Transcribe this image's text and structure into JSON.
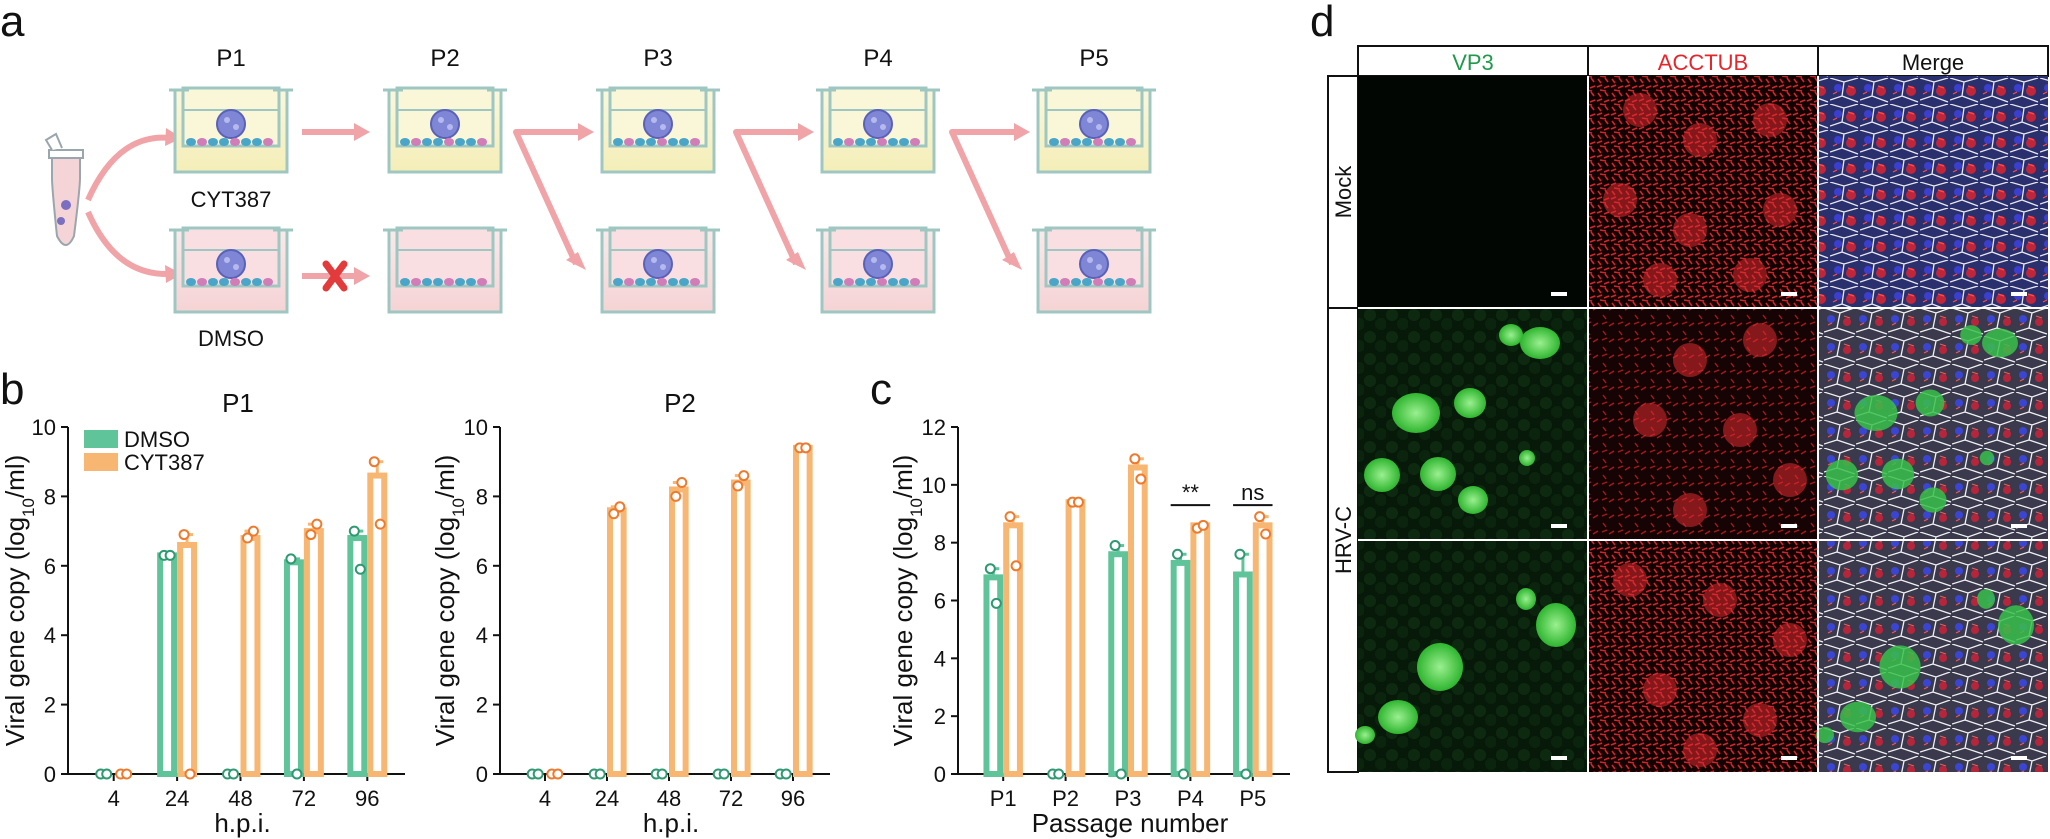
{
  "panels": {
    "a": "a",
    "b": "b",
    "c": "c",
    "d": "d"
  },
  "colors": {
    "dmso": "#5fc49a",
    "cyt": "#f7b772",
    "dmso_dot": "#2e9a72",
    "cyt_dot": "#ee7b2d",
    "arrow": "#f1a4a8",
    "cross": "#e33b3b",
    "vp3": "#1f9a4a",
    "acctub": "#e6262b"
  },
  "schematic": {
    "passages": [
      "P1",
      "P2",
      "P3",
      "P4",
      "P5"
    ],
    "conditions": {
      "top": "CYT387",
      "bottom": "DMSO"
    }
  },
  "legend": {
    "dmso": "DMSO",
    "cyt": "CYT387"
  },
  "charts": [
    {
      "title": "P1",
      "xlabel": "h.p.i.",
      "ylabel_main": "Viral gene copy (log",
      "ylabel_sub": "10",
      "ylabel_end": "/ml)",
      "y_ticks": [
        "0",
        "2",
        "4",
        "6",
        "8",
        "10"
      ]
    },
    {
      "title": "P2",
      "xlabel": "h.p.i.",
      "ylabel_main": "Viral gene copy (log",
      "ylabel_sub": "10",
      "ylabel_end": "/ml)",
      "y_ticks": [
        "0",
        "2",
        "4",
        "6",
        "8",
        "10"
      ]
    },
    {
      "title": "",
      "xlabel": "Passage number",
      "ylabel_main": "Viral gene copy (log",
      "ylabel_sub": "10",
      "ylabel_end": "/ml)",
      "y_ticks": [
        "0",
        "2",
        "4",
        "6",
        "8",
        "10",
        "12"
      ],
      "sig": [
        "**",
        "ns"
      ]
    }
  ],
  "chart_data": [
    {
      "type": "bar",
      "title": "P1",
      "xlabel": "h.p.i.",
      "ylabel": "Viral gene copy (log10/ml)",
      "ylim": [
        0,
        10
      ],
      "categories": [
        "4",
        "24",
        "48",
        "72",
        "96"
      ],
      "series": [
        {
          "name": "DMSO",
          "values": [
            0,
            6.3,
            0,
            6.1,
            6.8
          ],
          "points": [
            [
              0,
              0
            ],
            [
              6.3,
              6.3
            ],
            [
              0,
              0
            ],
            [
              6.2,
              0
            ],
            [
              7.0,
              5.9
            ]
          ]
        },
        {
          "name": "CYT387",
          "values": [
            0,
            6.6,
            6.8,
            7.0,
            8.6
          ],
          "points": [
            [
              0,
              0
            ],
            [
              6.9,
              0
            ],
            [
              6.8,
              7.0
            ],
            [
              6.9,
              7.2
            ],
            [
              9.0,
              7.2
            ]
          ]
        }
      ]
    },
    {
      "type": "bar",
      "title": "P2",
      "xlabel": "h.p.i.",
      "ylabel": "Viral gene copy (log10/ml)",
      "ylim": [
        0,
        10
      ],
      "categories": [
        "4",
        "24",
        "48",
        "72",
        "96"
      ],
      "series": [
        {
          "name": "DMSO",
          "values": [
            0,
            0,
            0,
            0,
            0
          ],
          "points": [
            [
              0,
              0
            ],
            [
              0,
              0
            ],
            [
              0,
              0
            ],
            [
              0,
              0
            ],
            [
              0,
              0
            ]
          ]
        },
        {
          "name": "CYT387",
          "values": [
            0,
            7.6,
            8.2,
            8.4,
            9.4
          ],
          "points": [
            [
              0,
              0
            ],
            [
              7.5,
              7.7
            ],
            [
              8.0,
              8.4
            ],
            [
              8.3,
              8.6
            ],
            [
              9.4,
              9.4
            ]
          ]
        }
      ]
    },
    {
      "type": "bar",
      "title": "",
      "xlabel": "Passage number",
      "ylabel": "Viral gene copy (log10/ml)",
      "ylim": [
        0,
        12
      ],
      "categories": [
        "P1",
        "P2",
        "P3",
        "P4",
        "P5"
      ],
      "series": [
        {
          "name": "DMSO",
          "values": [
            6.8,
            0,
            7.6,
            7.3,
            6.9
          ],
          "points": [
            [
              7.1,
              5.9
            ],
            [
              0,
              0
            ],
            [
              7.9,
              0
            ],
            [
              7.6,
              0
            ],
            [
              7.6,
              0
            ]
          ]
        },
        {
          "name": "CYT387",
          "values": [
            8.6,
            9.4,
            10.6,
            8.6,
            8.6
          ],
          "points": [
            [
              8.9,
              7.2
            ],
            [
              9.4,
              9.4
            ],
            [
              10.9,
              10.2
            ],
            [
              8.5,
              8.6
            ],
            [
              8.9,
              8.3
            ]
          ]
        }
      ],
      "significance": [
        {
          "category": "P4",
          "label": "**"
        },
        {
          "category": "P5",
          "label": "ns"
        }
      ]
    }
  ],
  "micrographs": {
    "columns": [
      "VP3",
      "ACCTUB",
      "Merge"
    ],
    "rows": [
      "Mock",
      "HRV-C"
    ]
  }
}
